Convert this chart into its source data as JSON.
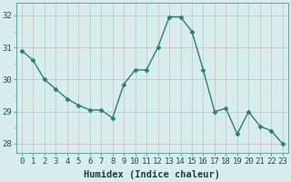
{
  "x": [
    0,
    1,
    2,
    3,
    4,
    5,
    6,
    7,
    8,
    9,
    10,
    11,
    12,
    13,
    14,
    15,
    16,
    17,
    18,
    19,
    20,
    21,
    22,
    23
  ],
  "y": [
    30.9,
    30.6,
    30.0,
    29.7,
    29.4,
    29.2,
    29.05,
    29.05,
    28.8,
    29.85,
    30.3,
    30.3,
    31.0,
    31.95,
    31.95,
    31.5,
    30.3,
    29.0,
    29.1,
    28.3,
    29.0,
    28.55,
    28.4,
    28.0
  ],
  "line_color": "#2d7d78",
  "marker": "D",
  "marker_size": 2.5,
  "bg_color": "#d8eeed",
  "grid_color_minor": "#c8e4e2",
  "grid_color_major": "#b8d4d0",
  "xlabel": "Humidex (Indice chaleur)",
  "ylim": [
    27.7,
    32.4
  ],
  "yticks": [
    28,
    29,
    30,
    31,
    32
  ],
  "xticks": [
    0,
    1,
    2,
    3,
    4,
    5,
    6,
    7,
    8,
    9,
    10,
    11,
    12,
    13,
    14,
    15,
    16,
    17,
    18,
    19,
    20,
    21,
    22,
    23
  ],
  "xlabel_fontsize": 7.5,
  "tick_fontsize": 6.5,
  "line_width": 1.0,
  "spine_color": "#6aaaaa"
}
